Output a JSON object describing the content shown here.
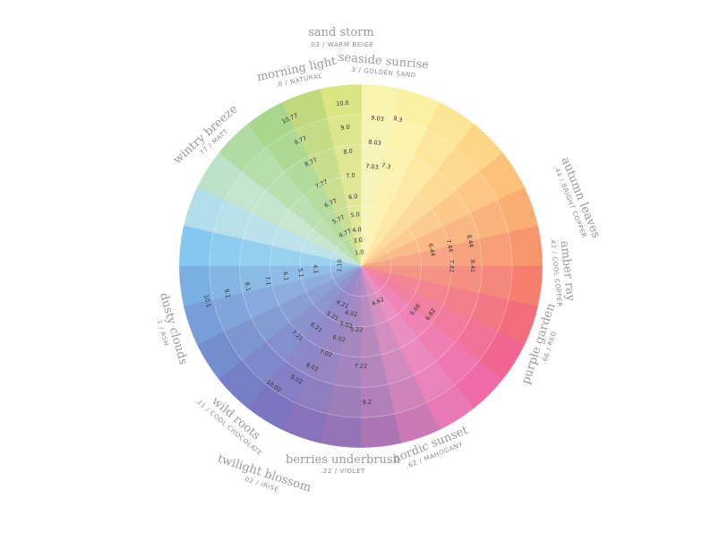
{
  "chart_data": {
    "type": "color-wheel",
    "rings": 6,
    "segments": [
      {
        "color": "#f7f3a6"
      },
      {
        "color": "#fbf09a"
      },
      {
        "color": "#fde38c"
      },
      {
        "color": "#fdd17a"
      },
      {
        "color": "#fcbb6b"
      },
      {
        "color": "#faa461"
      },
      {
        "color": "#f78a5d"
      },
      {
        "color": "#f4705f"
      },
      {
        "color": "#f15d6c"
      },
      {
        "color": "#ef5584"
      },
      {
        "color": "#ec5b9f"
      },
      {
        "color": "#e66aae"
      },
      {
        "color": "#c56aac"
      },
      {
        "color": "#a266ac"
      },
      {
        "color": "#8b63ae"
      },
      {
        "color": "#7a63b4"
      },
      {
        "color": "#6e66ba"
      },
      {
        "color": "#6670c0"
      },
      {
        "color": "#6582c8"
      },
      {
        "color": "#6894d3"
      },
      {
        "color": "#6ba8de"
      },
      {
        "color": "#78c2ee"
      },
      {
        "color": "#a9dbe8"
      },
      {
        "color": "#b7dfc3"
      },
      {
        "color": "#a8d89a"
      },
      {
        "color": "#9fd27f"
      },
      {
        "color": "#b9d56f"
      },
      {
        "color": "#d9e176"
      }
    ],
    "wedge_labels": [
      {
        "text": "10.0",
        "seg": 27,
        "ring": 5.4
      },
      {
        "text": "9.0",
        "seg": 27,
        "ring": 4.6
      },
      {
        "text": "8.0",
        "seg": 27,
        "ring": 3.8
      },
      {
        "text": "7.0",
        "seg": 27,
        "ring": 3.0
      },
      {
        "text": "6.0",
        "seg": 27,
        "ring": 2.3
      },
      {
        "text": "5.0",
        "seg": 27,
        "ring": 1.7
      },
      {
        "text": "4.0",
        "seg": 27,
        "ring": 1.2
      },
      {
        "text": "3.0",
        "seg": 27,
        "ring": 0.85
      },
      {
        "text": "1.0",
        "seg": 27,
        "ring": 0.45
      },
      {
        "text": "9.03",
        "seg": 0,
        "ring": 4.9
      },
      {
        "text": "8.03",
        "seg": 0,
        "ring": 4.1
      },
      {
        "text": "7.03",
        "seg": 0,
        "ring": 3.3
      },
      {
        "text": "9.3",
        "seg": 0.6,
        "ring": 5.0
      },
      {
        "text": "7.3",
        "seg": 0.6,
        "ring": 3.4
      },
      {
        "text": "10.77",
        "seg": 25.5,
        "ring": 5.4
      },
      {
        "text": "9.77",
        "seg": 25.5,
        "ring": 4.6
      },
      {
        "text": "8.77",
        "seg": 25.5,
        "ring": 3.8
      },
      {
        "text": "7.77",
        "seg": 25.5,
        "ring": 3.0
      },
      {
        "text": "6.77",
        "seg": 25.5,
        "ring": 2.3
      },
      {
        "text": "5.77",
        "seg": 25.5,
        "ring": 1.7
      },
      {
        "text": "4.77",
        "seg": 25.5,
        "ring": 1.2
      },
      {
        "text": "8.44",
        "seg": 5.5,
        "ring": 3.7
      },
      {
        "text": "7.44",
        "seg": 5.5,
        "ring": 3.0
      },
      {
        "text": "6.44",
        "seg": 5.5,
        "ring": 2.4
      },
      {
        "text": "8.42",
        "seg": 6.5,
        "ring": 3.7
      },
      {
        "text": "7.42",
        "seg": 6.5,
        "ring": 3.0
      },
      {
        "text": "6.66",
        "seg": 9.5,
        "ring": 2.3
      },
      {
        "text": "6.62",
        "seg": 9.2,
        "ring": 2.8
      },
      {
        "text": "4.62",
        "seg": 11.5,
        "ring": 1.3
      },
      {
        "text": "9.2",
        "seg": 13.3,
        "ring": 4.5
      },
      {
        "text": "7.22",
        "seg": 13.5,
        "ring": 3.3
      },
      {
        "text": "5.22",
        "seg": 13.8,
        "ring": 2.1
      },
      {
        "text": "4.02",
        "seg": 14.4,
        "ring": 1.6
      },
      {
        "text": "5.02",
        "seg": 14.6,
        "ring": 2.0
      },
      {
        "text": "6.02",
        "seg": 14.8,
        "ring": 2.5
      },
      {
        "text": "7.02",
        "seg": 15.2,
        "ring": 3.1
      },
      {
        "text": "8.02",
        "seg": 15.5,
        "ring": 3.7
      },
      {
        "text": "9.02",
        "seg": 15.8,
        "ring": 4.3
      },
      {
        "text": "10.02",
        "seg": 16.3,
        "ring": 4.9
      },
      {
        "text": "4.21",
        "seg": 15.5,
        "ring": 1.4
      },
      {
        "text": "5.21",
        "seg": 15.8,
        "ring": 1.9
      },
      {
        "text": "6.21",
        "seg": 16.3,
        "ring": 2.5
      },
      {
        "text": "7.21",
        "seg": 16.8,
        "ring": 3.1
      },
      {
        "text": "10.1",
        "seg": 19.5,
        "ring": 5.2
      },
      {
        "text": "9.1",
        "seg": 19.6,
        "ring": 4.5
      },
      {
        "text": "8.1",
        "seg": 19.7,
        "ring": 3.8
      },
      {
        "text": "7.1",
        "seg": 19.8,
        "ring": 3.1
      },
      {
        "text": "6.1",
        "seg": 19.9,
        "ring": 2.5
      },
      {
        "text": "5.1",
        "seg": 20.0,
        "ring": 2.0
      },
      {
        "text": "4.1",
        "seg": 20.2,
        "ring": 1.5
      },
      {
        "text": "1.10",
        "seg": 20.6,
        "ring": 0.7
      }
    ],
    "outer_labels": [
      {
        "name": "sand storm",
        "sub": ".03 / WARM BEIGE"
      },
      {
        "name": "seaside sunrise",
        "sub": ".3 / GOLDEN SAND"
      },
      {
        "name": "morning light",
        "sub": ".0 / NATURAL"
      },
      {
        "name": "wintry breeze",
        "sub": ".77 / MATT"
      },
      {
        "name": "autumn leaves",
        "sub": ".44 / BRIGHT COPPER"
      },
      {
        "name": "amber ray",
        "sub": ".42 / COOL COPPER"
      },
      {
        "name": "purple garden",
        "sub": ".66 / RED"
      },
      {
        "name": "dusty clouds",
        "sub": ".1 / ASH"
      },
      {
        "name": "wild roots",
        "sub": ".21 / COOL CHOCOLATE"
      },
      {
        "name": "nordic sunset",
        "sub": ".62 / MAHOGANY"
      },
      {
        "name": "berries underbrush",
        "sub": ".22 / VIOLET"
      },
      {
        "name": "twilight blossom",
        "sub": ".02 / IRISE"
      }
    ]
  }
}
